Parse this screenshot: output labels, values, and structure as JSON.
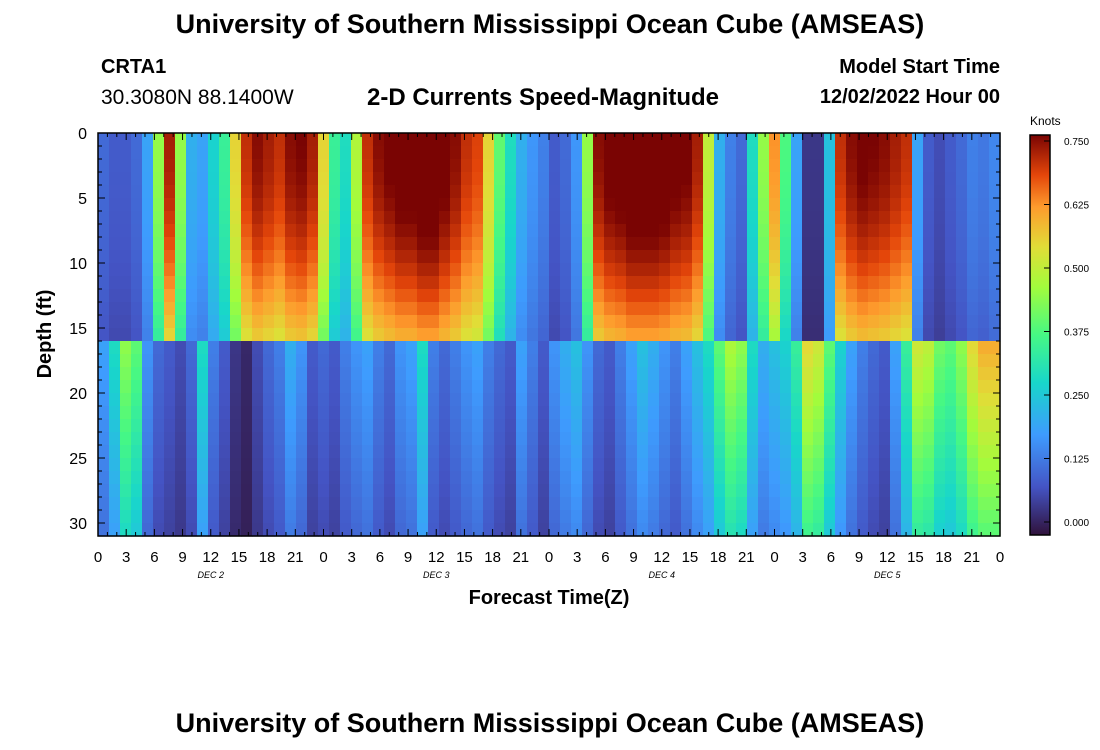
{
  "header": {
    "title": "University of Southern Mississippi Ocean Cube (AMSEAS)",
    "station_id": "CRTA1",
    "station_coords": "30.3080N  88.1400W",
    "subtitle": "2-D Currents Speed-Magnitude",
    "start_label": "Model Start Time",
    "start_value": "12/02/2022 Hour 00"
  },
  "footer": {
    "title": "University of Southern Mississippi Ocean Cube (AMSEAS)"
  },
  "chart_data": {
    "type": "heatmap",
    "title": "2-D Currents Speed-Magnitude",
    "xlabel": "Forecast Time(Z)",
    "ylabel": "Depth (ft)",
    "x_range_hours": [
      0,
      96
    ],
    "y_range_ft": [
      0,
      31
    ],
    "x_tick_labels": [
      "0",
      "3",
      "6",
      "9",
      "12",
      "15",
      "18",
      "21",
      "0",
      "3",
      "6",
      "9",
      "12",
      "15",
      "18",
      "21",
      "0",
      "3",
      "6",
      "9",
      "12",
      "15",
      "18",
      "21",
      "0",
      "3",
      "6",
      "9",
      "12",
      "15",
      "18",
      "21",
      "0"
    ],
    "day_labels": [
      {
        "label": "DEC 2",
        "hour": 12
      },
      {
        "label": "DEC 3",
        "hour": 36
      },
      {
        "label": "DEC 4",
        "hour": 60
      },
      {
        "label": "DEC 5",
        "hour": 84
      }
    ],
    "y_ticks": [
      0,
      5,
      10,
      15,
      20,
      25,
      30
    ],
    "colorbar": {
      "label": "Knots",
      "min": 0.0,
      "max": 0.75,
      "ticks": [
        "0.000",
        "0.125",
        "0.250",
        "0.375",
        "0.500",
        "0.625",
        "0.750"
      ]
    },
    "upper_layer_bottom_ft": 16,
    "upper_layer_speed_knots": [
      0.12,
      0.1,
      0.1,
      0.12,
      0.2,
      0.45,
      0.72,
      0.45,
      0.22,
      0.2,
      0.28,
      0.35,
      0.55,
      0.7,
      0.74,
      0.72,
      0.7,
      0.74,
      0.75,
      0.72,
      0.55,
      0.35,
      0.3,
      0.48,
      0.7,
      0.74,
      0.76,
      0.78,
      0.78,
      0.8,
      0.8,
      0.77,
      0.74,
      0.7,
      0.68,
      0.55,
      0.4,
      0.3,
      0.22,
      0.18,
      0.15,
      0.1,
      0.12,
      0.18,
      0.45,
      0.74,
      0.77,
      0.78,
      0.8,
      0.8,
      0.8,
      0.79,
      0.77,
      0.76,
      0.72,
      0.5,
      0.22,
      0.15,
      0.12,
      0.3,
      0.45,
      0.62,
      0.38,
      0.2,
      0.05,
      0.05,
      0.25,
      0.7,
      0.74,
      0.76,
      0.75,
      0.74,
      0.72,
      0.7,
      0.2,
      0.1,
      0.08,
      0.1,
      0.12,
      0.15,
      0.14,
      0.16
    ],
    "lower_layer_speed_knots": [
      0.2,
      0.3,
      0.45,
      0.4,
      0.18,
      0.12,
      0.1,
      0.08,
      0.12,
      0.3,
      0.15,
      0.1,
      0.05,
      0.03,
      0.08,
      0.12,
      0.15,
      0.22,
      0.18,
      0.1,
      0.12,
      0.1,
      0.15,
      0.18,
      0.2,
      0.15,
      0.12,
      0.18,
      0.2,
      0.3,
      0.15,
      0.12,
      0.15,
      0.18,
      0.2,
      0.15,
      0.12,
      0.1,
      0.2,
      0.15,
      0.1,
      0.18,
      0.22,
      0.25,
      0.18,
      0.12,
      0.1,
      0.15,
      0.2,
      0.25,
      0.22,
      0.18,
      0.15,
      0.2,
      0.25,
      0.3,
      0.4,
      0.48,
      0.45,
      0.3,
      0.22,
      0.25,
      0.28,
      0.35,
      0.55,
      0.52,
      0.4,
      0.28,
      0.2,
      0.15,
      0.12,
      0.1,
      0.2,
      0.35,
      0.52,
      0.5,
      0.42,
      0.4,
      0.45,
      0.55,
      0.6,
      0.6
    ]
  },
  "colors": {
    "background": "#ffffff",
    "axis": "#000000"
  }
}
